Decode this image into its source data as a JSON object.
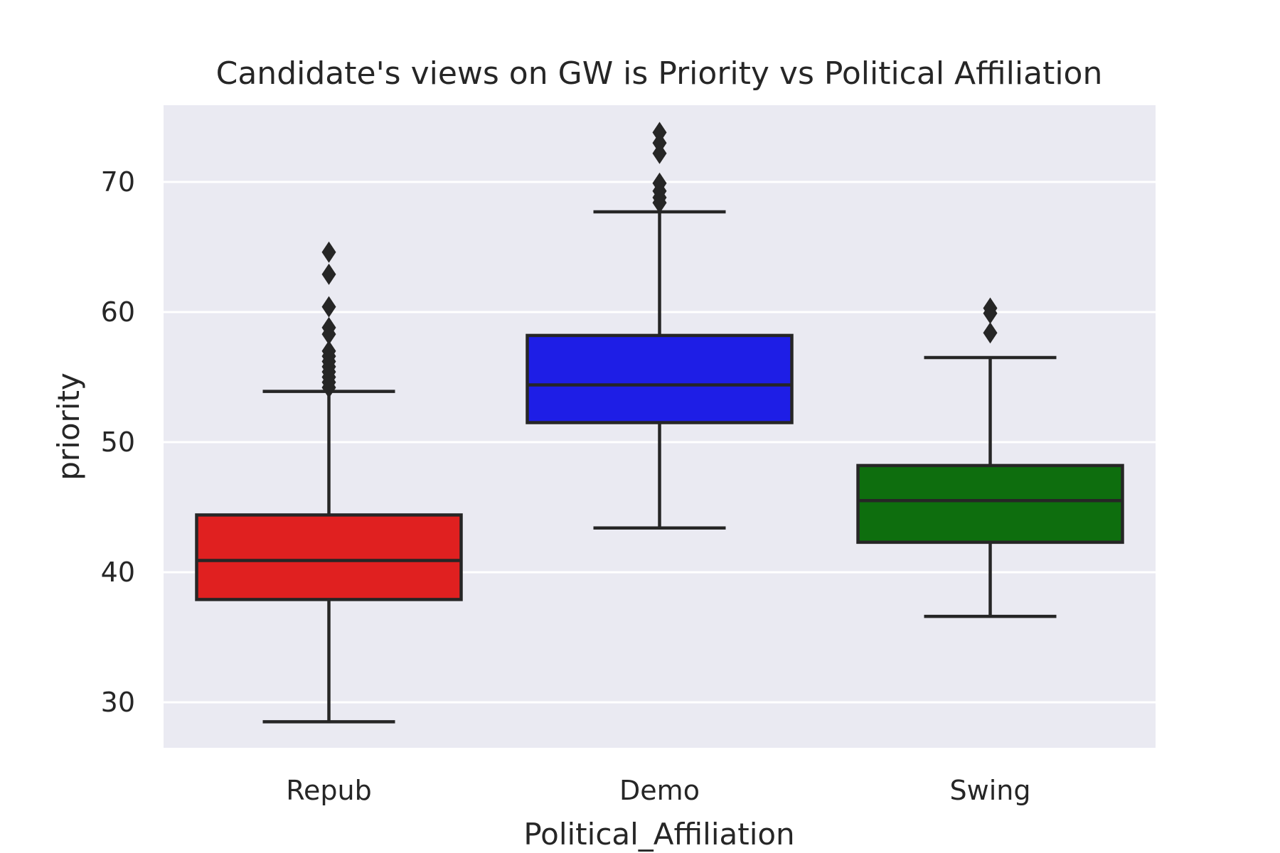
{
  "chart_data": {
    "type": "box",
    "title": "Candidate's views on GW is Priority vs Political Affiliation",
    "xlabel": "Political_Affiliation",
    "ylabel": "priority",
    "ylim": [
      26.5,
      75.9
    ],
    "yticks": [
      30,
      40,
      50,
      60,
      70
    ],
    "grid": true,
    "background_color": "#eaeaf2",
    "categories": [
      "Repub",
      "Demo",
      "Swing"
    ],
    "boxes": [
      {
        "category": "Repub",
        "color": "#e02020",
        "whisker_low": 28.5,
        "q1": 37.9,
        "median": 40.9,
        "q3": 44.4,
        "whisker_high": 53.9,
        "outliers": [
          54.2,
          54.6,
          55.0,
          55.4,
          55.8,
          56.2,
          56.6,
          57.0,
          58.3,
          58.8,
          60.4,
          62.9,
          64.6
        ]
      },
      {
        "category": "Demo",
        "color": "#1e1ee6",
        "whisker_low": 43.4,
        "q1": 51.5,
        "median": 54.4,
        "q3": 58.2,
        "whisker_high": 67.7,
        "outliers": [
          68.4,
          68.8,
          69.3,
          69.9,
          72.2,
          73.0,
          73.8
        ]
      },
      {
        "category": "Swing",
        "color": "#0e6e0e",
        "whisker_low": 36.6,
        "q1": 42.3,
        "median": 45.5,
        "q3": 48.2,
        "whisker_high": 56.5,
        "outliers": [
          58.4,
          59.9,
          60.3
        ]
      }
    ]
  }
}
